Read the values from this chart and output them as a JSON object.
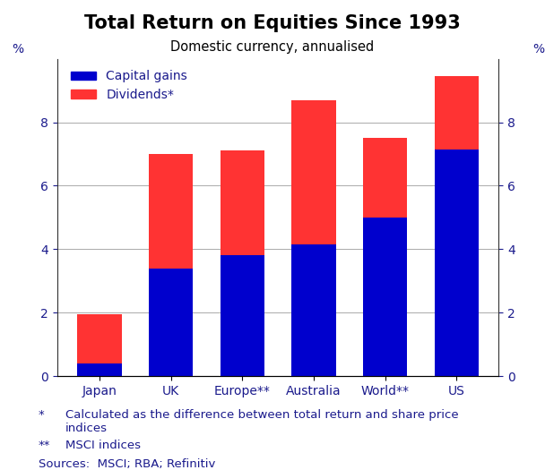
{
  "categories": [
    "Japan",
    "UK",
    "Europe**",
    "Australia",
    "World**",
    "US"
  ],
  "capital_gains": [
    0.4,
    3.4,
    3.8,
    4.15,
    5.0,
    7.15
  ],
  "dividends": [
    1.55,
    3.6,
    3.3,
    4.55,
    2.5,
    2.3
  ],
  "capital_gains_color": "#0000cd",
  "dividends_color": "#ff3333",
  "title": "Total Return on Equities Since 1993",
  "subtitle": "Domestic currency, annualised",
  "ylabel_left": "%",
  "ylabel_right": "%",
  "ylim": [
    0,
    10
  ],
  "yticks": [
    0,
    2,
    4,
    6,
    8
  ],
  "legend_capital": "Capital gains",
  "legend_dividends": "Dividends*",
  "footnote1_star": "*",
  "footnote1_text": "Calculated as the difference between total return and share price\nindices",
  "footnote2_star": "**",
  "footnote2_text": "MSCI indices",
  "sources": "Sources:  MSCI; RBA; Refinitiv",
  "text_color": "#1a1a8c",
  "background_color": "#ffffff",
  "title_fontsize": 15,
  "subtitle_fontsize": 10.5,
  "tick_fontsize": 10,
  "legend_fontsize": 10,
  "footnote_fontsize": 9.5
}
